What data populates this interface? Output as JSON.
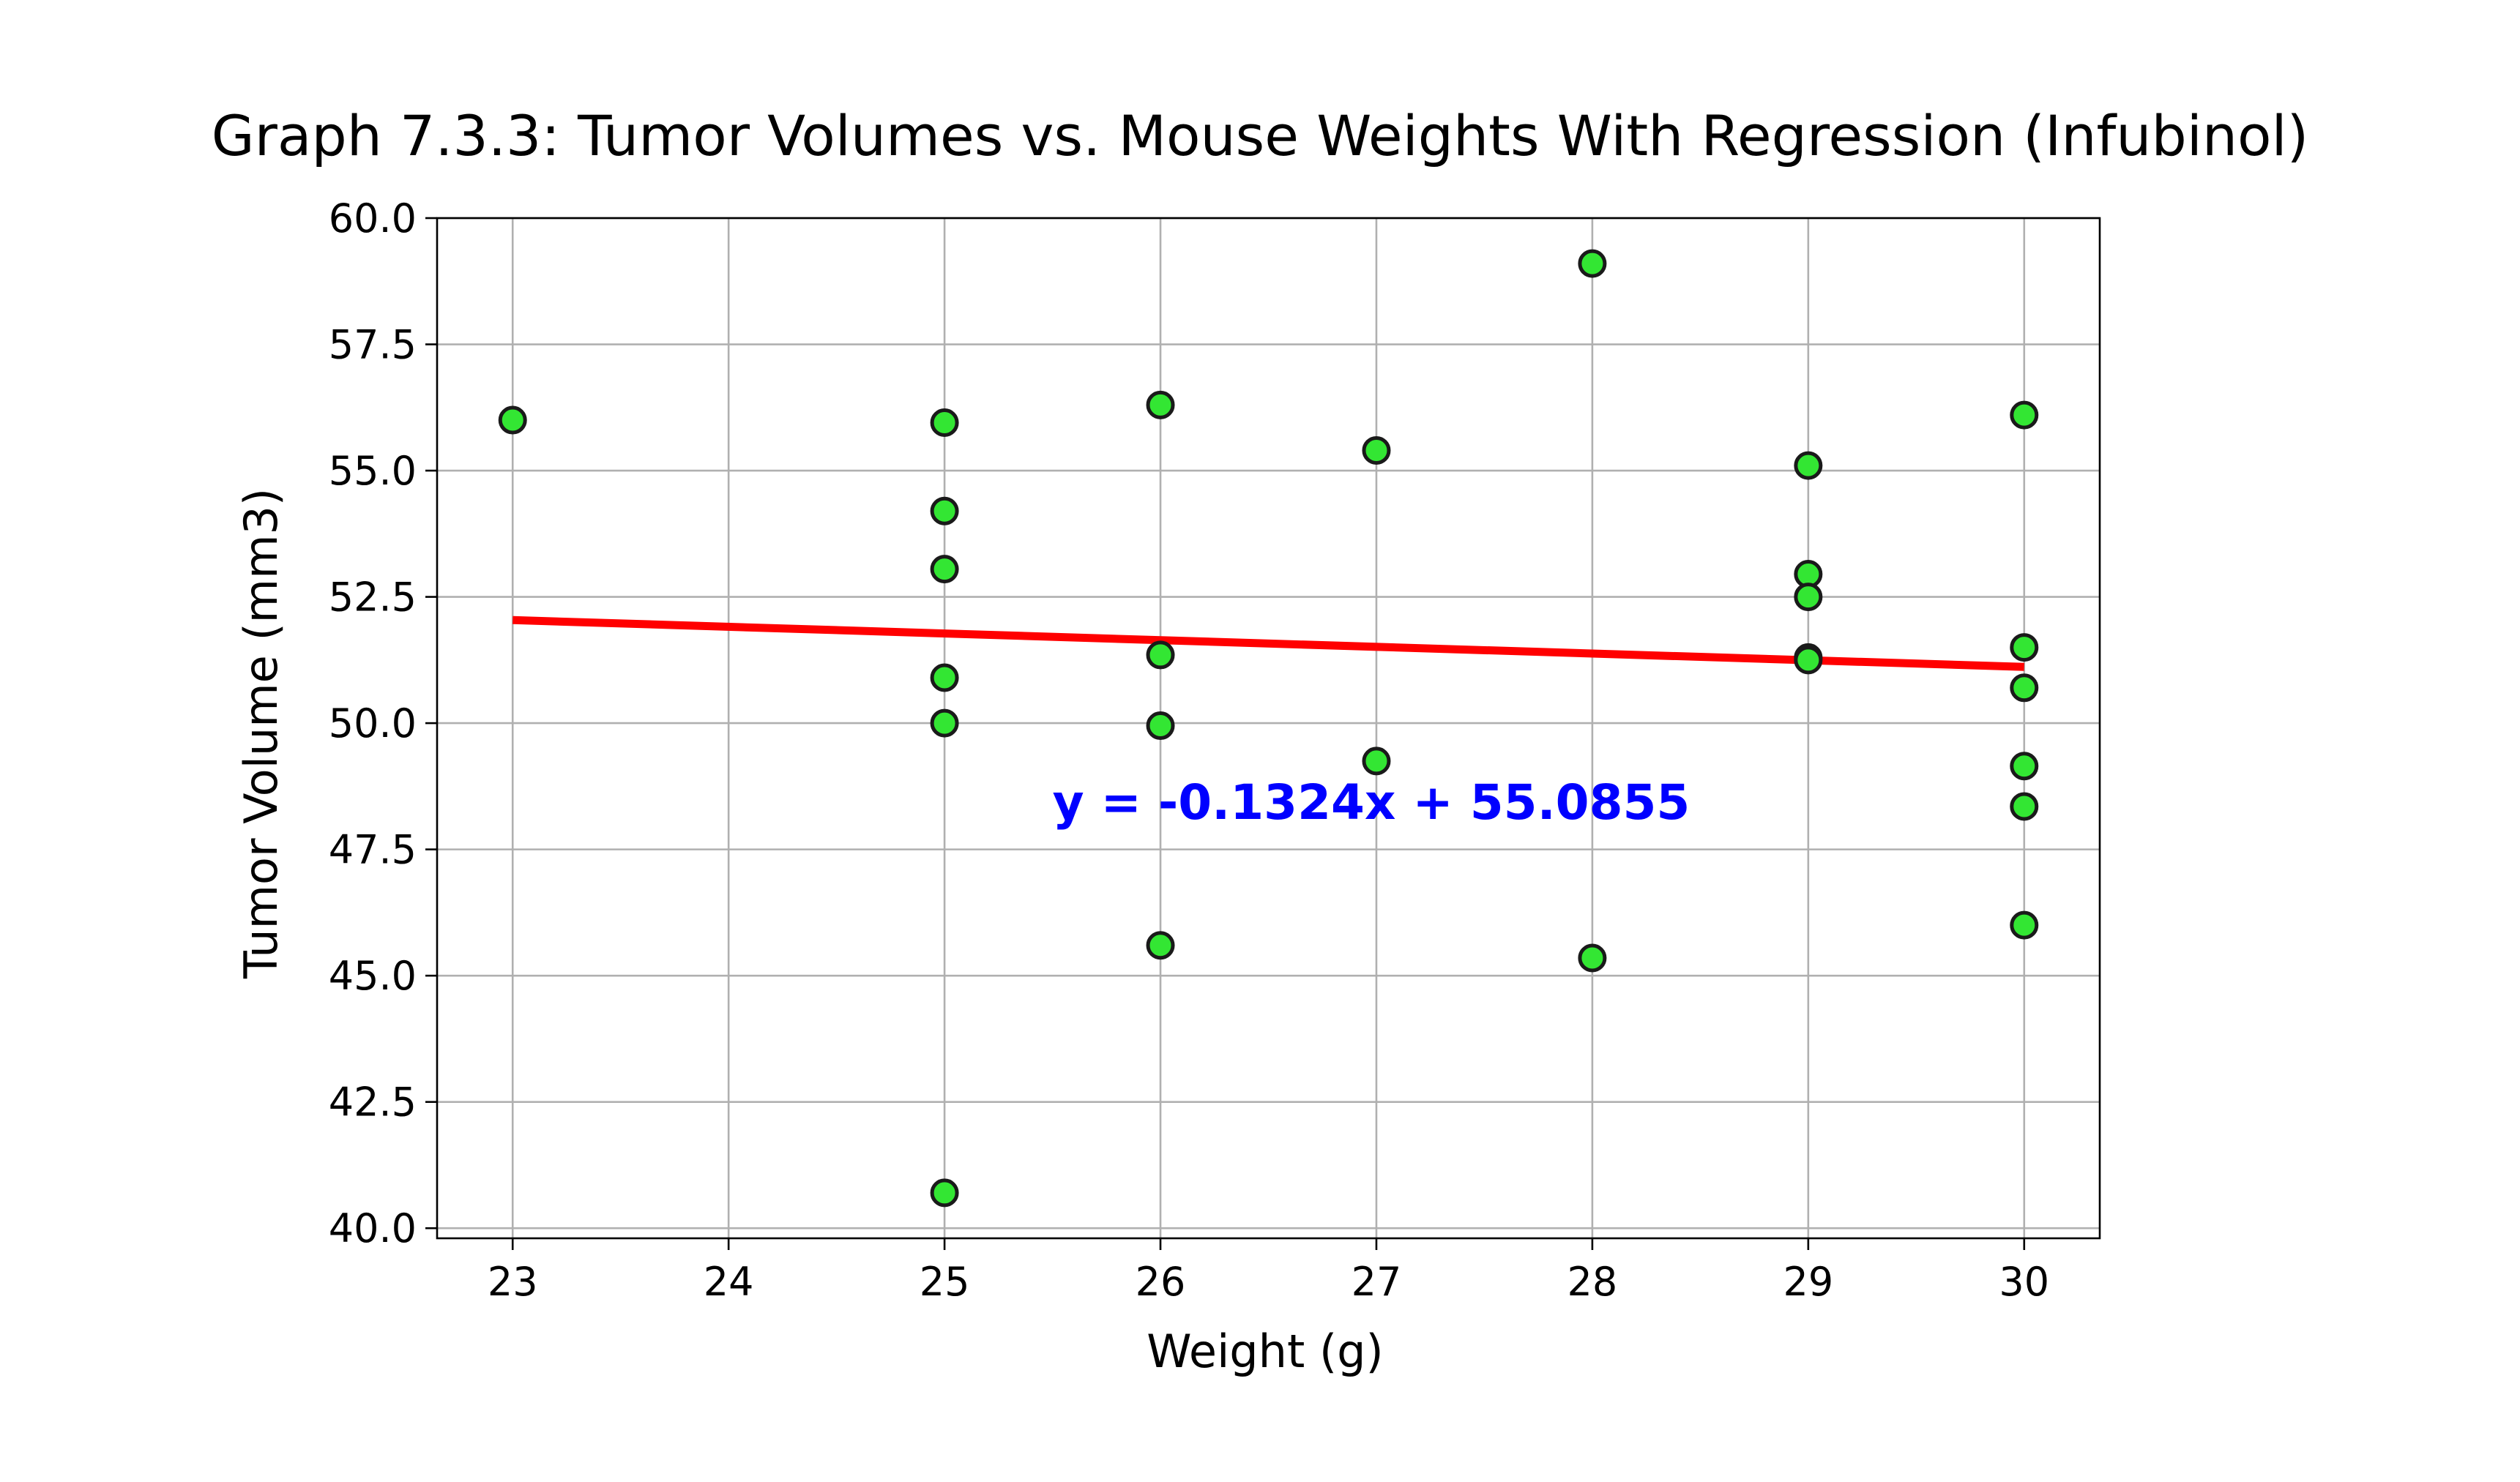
{
  "chart_data": {
    "type": "scatter",
    "title": "Graph 7.3.3: Tumor Volumes vs. Mouse Weights With Regression (Infubinol)",
    "xlabel": "Weight (g)",
    "ylabel": "Tumor Volume (mm3)",
    "xlim": [
      22.65,
      30.35
    ],
    "ylim": [
      39.8,
      60.0
    ],
    "xticks": [
      "23",
      "24",
      "25",
      "26",
      "27",
      "28",
      "29",
      "30"
    ],
    "yticks": [
      "40.0",
      "42.5",
      "45.0",
      "47.5",
      "50.0",
      "52.5",
      "55.0",
      "57.5",
      "60.0"
    ],
    "grid": true,
    "points": [
      {
        "x": 23,
        "y": 56.0
      },
      {
        "x": 25,
        "y": 55.95
      },
      {
        "x": 25,
        "y": 54.2
      },
      {
        "x": 25,
        "y": 53.05
      },
      {
        "x": 25,
        "y": 50.9
      },
      {
        "x": 25,
        "y": 50.0
      },
      {
        "x": 25,
        "y": 40.7
      },
      {
        "x": 26,
        "y": 56.3
      },
      {
        "x": 26,
        "y": 51.35
      },
      {
        "x": 26,
        "y": 49.95
      },
      {
        "x": 26,
        "y": 45.6
      },
      {
        "x": 27,
        "y": 55.4
      },
      {
        "x": 27,
        "y": 49.25
      },
      {
        "x": 28,
        "y": 59.1
      },
      {
        "x": 28,
        "y": 45.35
      },
      {
        "x": 29,
        "y": 55.1
      },
      {
        "x": 29,
        "y": 52.95
      },
      {
        "x": 29,
        "y": 52.5
      },
      {
        "x": 29,
        "y": 51.3
      },
      {
        "x": 29,
        "y": 51.25
      },
      {
        "x": 30,
        "y": 56.1
      },
      {
        "x": 30,
        "y": 51.5
      },
      {
        "x": 30,
        "y": 50.7
      },
      {
        "x": 30,
        "y": 49.15
      },
      {
        "x": 30,
        "y": 48.35
      },
      {
        "x": 30,
        "y": 46.0
      }
    ],
    "regression": {
      "slope": -0.1324,
      "intercept": 55.0855,
      "x_range": [
        23,
        30
      ],
      "equation": "y = -0.1324x + 55.0855",
      "equation_position": {
        "x": 25.5,
        "y": 48.1
      }
    },
    "colors": {
      "point_fill": "#33e633",
      "point_edge": "#1a1a1a",
      "regression_line": "#ff0000",
      "equation_text": "#0000ff"
    }
  }
}
